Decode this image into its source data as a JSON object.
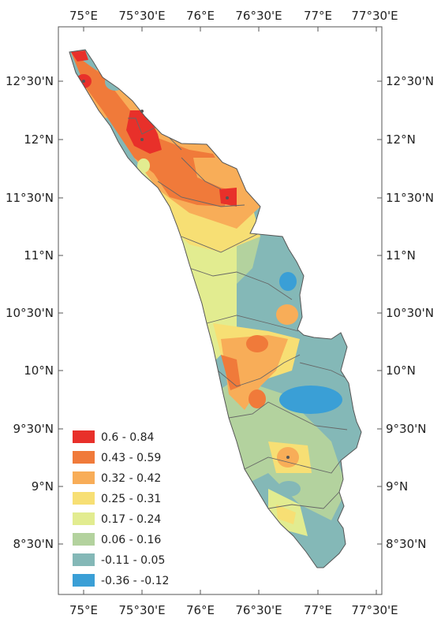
{
  "map": {
    "top_axis_labels": [
      "75°E",
      "75°30'E",
      "76°E",
      "76°30'E",
      "77°E",
      "77°30'E"
    ],
    "bottom_axis_labels": [
      "75°E",
      "75°30'E",
      "76°E",
      "76°30'E",
      "77°E",
      "77°30'E"
    ],
    "left_axis_labels": [
      "12°30'N",
      "12°N",
      "11°30'N",
      "11°N",
      "10°30'N",
      "10°N",
      "9°30'N",
      "9°N",
      "8°30'N"
    ],
    "right_axis_labels": [
      "12°30'N",
      "12°N",
      "11°30'N",
      "11°N",
      "10°30'N",
      "10°N",
      "9°30'N",
      "9°N",
      "8°30'N"
    ]
  },
  "legend": {
    "items": [
      {
        "label": "0.6 - 0.84",
        "color": "#e8302a"
      },
      {
        "label": "0.43 - 0.59",
        "color": "#f07a3a"
      },
      {
        "label": "0.32 - 0.42",
        "color": "#f8ad58"
      },
      {
        "label": "0.25 - 0.31",
        "color": "#f7df74"
      },
      {
        "label": "0.17 - 0.24",
        "color": "#e2ec90"
      },
      {
        "label": "0.06 - 0.16",
        "color": "#b3d29e"
      },
      {
        "label": "-0.11 - 0.05",
        "color": "#84b8b7"
      },
      {
        "label": "-0.36 - -0.12",
        "color": "#3a9fd6"
      }
    ]
  }
}
